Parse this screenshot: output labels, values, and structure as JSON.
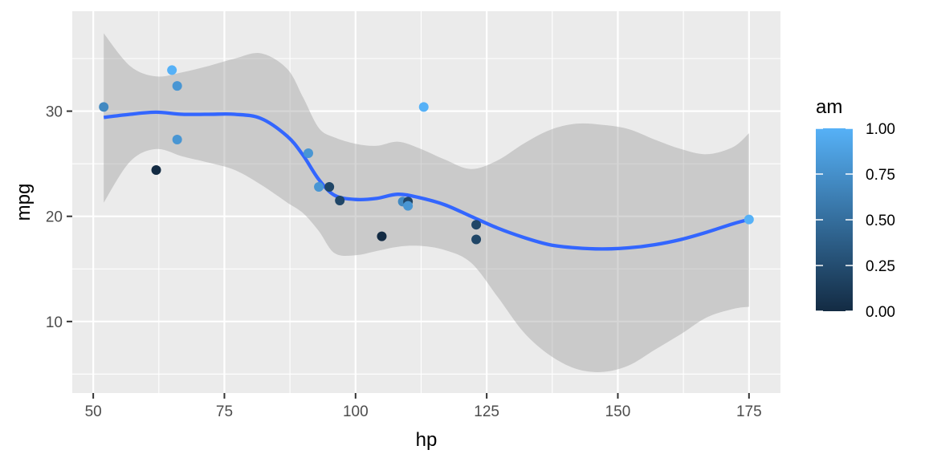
{
  "chart_data": {
    "type": "scatter",
    "xlabel": "hp",
    "ylabel": "mpg",
    "xlim": [
      46,
      181
    ],
    "ylim": [
      3.2,
      39.5
    ],
    "x_ticks": [
      50,
      75,
      100,
      125,
      150,
      175
    ],
    "y_ticks": [
      10,
      20,
      30
    ],
    "grid": true,
    "colors": {
      "panel_background": "#ebebeb",
      "grid": "#ffffff",
      "ribbon": "#999999",
      "smooth_line": "#3366ff",
      "gradient_low": "#132b43",
      "gradient_high": "#56b1f7"
    },
    "points": [
      {
        "x": 52,
        "y": 30.4,
        "am": 0.7
      },
      {
        "x": 62,
        "y": 24.4,
        "am": 0.0
      },
      {
        "x": 65,
        "y": 33.9,
        "am": 1.0
      },
      {
        "x": 66,
        "y": 32.4,
        "am": 0.8
      },
      {
        "x": 66,
        "y": 27.3,
        "am": 0.8
      },
      {
        "x": 91,
        "y": 26.0,
        "am": 0.8
      },
      {
        "x": 93,
        "y": 22.8,
        "am": 0.8
      },
      {
        "x": 95,
        "y": 22.8,
        "am": 0.2
      },
      {
        "x": 97,
        "y": 21.5,
        "am": 0.2
      },
      {
        "x": 105,
        "y": 18.1,
        "am": 0.0
      },
      {
        "x": 109,
        "y": 21.4,
        "am": 0.7
      },
      {
        "x": 110,
        "y": 21.4,
        "am": 0.2
      },
      {
        "x": 110,
        "y": 21.0,
        "am": 0.8
      },
      {
        "x": 113,
        "y": 30.4,
        "am": 1.0
      },
      {
        "x": 123,
        "y": 19.2,
        "am": 0.2
      },
      {
        "x": 123,
        "y": 17.8,
        "am": 0.2
      },
      {
        "x": 175,
        "y": 19.7,
        "am": 1.0
      }
    ],
    "smooth": {
      "x": [
        52,
        57,
        62,
        67,
        72,
        77,
        82,
        87,
        90,
        93,
        96,
        100,
        104,
        108,
        112,
        117,
        122,
        127,
        132,
        137,
        142,
        147,
        152,
        157,
        162,
        167,
        172,
        175
      ],
      "y": [
        29.4,
        29.7,
        29.9,
        29.7,
        29.7,
        29.7,
        29.3,
        27.6,
        25.8,
        23.5,
        22.0,
        21.6,
        21.7,
        22.1,
        21.8,
        21.1,
        20.0,
        18.9,
        18.0,
        17.3,
        17.0,
        16.9,
        17.0,
        17.3,
        17.8,
        18.5,
        19.3,
        19.7
      ],
      "lower": [
        21.3,
        25.2,
        26.4,
        25.7,
        25.1,
        24.4,
        23.0,
        21.3,
        20.3,
        18.6,
        16.5,
        16.3,
        16.7,
        17.1,
        17.2,
        16.8,
        15.6,
        12.4,
        9.0,
        6.8,
        5.5,
        5.2,
        5.8,
        7.3,
        8.8,
        10.4,
        11.2,
        11.4
      ],
      "upper": [
        37.4,
        34.3,
        33.3,
        33.7,
        34.3,
        35.0,
        35.5,
        34.0,
        31.3,
        28.4,
        27.5,
        26.9,
        26.7,
        27.1,
        26.5,
        25.4,
        24.5,
        25.3,
        26.9,
        28.2,
        28.8,
        28.7,
        28.3,
        27.3,
        26.4,
        25.9,
        26.6,
        27.9
      ]
    },
    "legend": {
      "title": "am",
      "position": "right",
      "range": [
        0,
        1
      ],
      "breaks": [
        0.0,
        0.25,
        0.5,
        0.75,
        1.0
      ],
      "labels": [
        "0.00",
        "0.25",
        "0.50",
        "0.75",
        "1.00"
      ]
    }
  }
}
